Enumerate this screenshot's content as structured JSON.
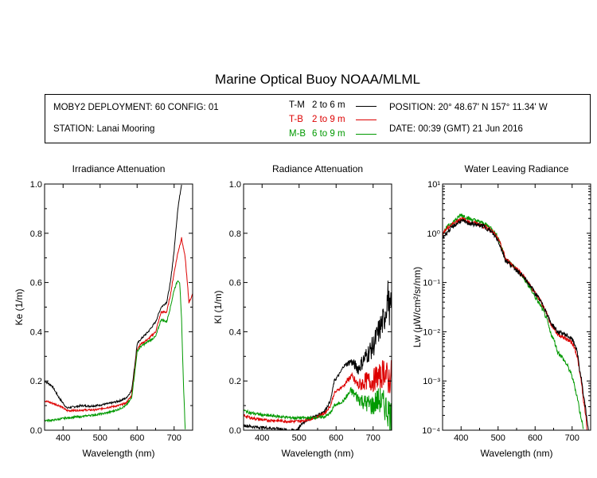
{
  "title": "Marine Optical Buoy NOAA/MLML",
  "info": {
    "deployment": "MOBY2 DEPLOYMENT: 60 CONFIG: 01",
    "station": "STATION: Lanai Mooring",
    "position": "POSITION: 20° 48.67' N   157° 11.34' W",
    "date": "DATE: 00:39 (GMT) 21 Jun 2016"
  },
  "legend": [
    {
      "code": "T-M",
      "range": "2 to 6  m",
      "color": "#000000"
    },
    {
      "code": "T-B",
      "range": "2 to 9  m",
      "color": "#dd0000"
    },
    {
      "code": "M-B",
      "range": "6 to 9  m",
      "color": "#009900"
    }
  ],
  "colors": {
    "tm": "#000000",
    "tb": "#dd0000",
    "mb": "#009900"
  },
  "chart_data": [
    {
      "type": "line",
      "title": "Irradiance Attenuation",
      "xlabel": "Wavelength (nm)",
      "ylabel": "Ke  (1/m)",
      "xlim": [
        350,
        750
      ],
      "ylim": [
        0,
        1.0
      ],
      "xticks": [
        400,
        500,
        600,
        700
      ],
      "yticks": [
        0.0,
        0.2,
        0.4,
        0.6,
        0.8,
        1.0
      ],
      "ytick_labels": [
        "0.0",
        "0.2",
        "0.4",
        "0.6",
        "0.8",
        "1.0"
      ],
      "noise": 0.004,
      "series": [
        {
          "key": "tm",
          "x": [
            350,
            370,
            390,
            410,
            430,
            450,
            470,
            490,
            510,
            530,
            550,
            570,
            585,
            595,
            600,
            610,
            630,
            650,
            665,
            680,
            690,
            700,
            710,
            720
          ],
          "y": [
            0.2,
            0.18,
            0.13,
            0.09,
            0.095,
            0.1,
            0.098,
            0.1,
            0.105,
            0.11,
            0.118,
            0.13,
            0.16,
            0.28,
            0.35,
            0.37,
            0.4,
            0.44,
            0.5,
            0.52,
            0.6,
            0.73,
            0.9,
            1.0
          ]
        },
        {
          "key": "tb",
          "x": [
            350,
            370,
            390,
            410,
            430,
            450,
            470,
            490,
            510,
            530,
            550,
            570,
            585,
            595,
            600,
            610,
            630,
            650,
            665,
            680,
            690,
            700,
            710,
            720,
            730,
            740,
            750
          ],
          "y": [
            0.12,
            0.11,
            0.1,
            0.08,
            0.08,
            0.082,
            0.082,
            0.083,
            0.09,
            0.095,
            0.1,
            0.11,
            0.14,
            0.26,
            0.33,
            0.35,
            0.37,
            0.4,
            0.48,
            0.48,
            0.55,
            0.64,
            0.72,
            0.78,
            0.7,
            0.52,
            0.55
          ]
        },
        {
          "key": "mb",
          "x": [
            350,
            370,
            390,
            410,
            430,
            450,
            470,
            490,
            510,
            530,
            550,
            570,
            585,
            595,
            600,
            610,
            630,
            650,
            665,
            680,
            690,
            700,
            710,
            715,
            720,
            725,
            730
          ],
          "y": [
            0.04,
            0.04,
            0.045,
            0.05,
            0.053,
            0.055,
            0.06,
            0.063,
            0.068,
            0.075,
            0.085,
            0.1,
            0.13,
            0.25,
            0.32,
            0.34,
            0.36,
            0.38,
            0.45,
            0.44,
            0.5,
            0.57,
            0.61,
            0.6,
            0.45,
            0.2,
            0.0
          ]
        }
      ]
    },
    {
      "type": "line",
      "title": "Radiance Attenuation",
      "xlabel": "Wavelength (nm)",
      "ylabel": "Kl  (1/m)",
      "xlim": [
        350,
        750
      ],
      "ylim": [
        0,
        1.0
      ],
      "xticks": [
        400,
        500,
        600,
        700
      ],
      "yticks": [
        0.0,
        0.2,
        0.4,
        0.6,
        0.8,
        1.0
      ],
      "ytick_labels": [
        "0.0",
        "0.2",
        "0.4",
        "0.6",
        "0.8",
        "1.0"
      ],
      "noise": 0.006,
      "series": [
        {
          "key": "tm",
          "x": [
            350,
            370,
            390,
            410,
            430,
            450,
            470,
            490,
            500,
            510,
            530,
            550,
            570,
            585,
            595,
            610,
            620,
            640,
            660,
            680,
            700,
            710,
            720,
            730,
            740,
            745,
            750
          ],
          "y": [
            0.02,
            0.015,
            0.012,
            0.01,
            0.008,
            0.005,
            0.0,
            0.0,
            0.01,
            0.03,
            0.05,
            0.06,
            0.08,
            0.12,
            0.2,
            0.23,
            0.26,
            0.28,
            0.25,
            0.3,
            0.34,
            0.38,
            0.42,
            0.45,
            0.55,
            0.48,
            0.5
          ]
        },
        {
          "key": "tb",
          "x": [
            350,
            370,
            390,
            410,
            430,
            450,
            470,
            490,
            510,
            530,
            550,
            570,
            585,
            595,
            610,
            620,
            640,
            660,
            680,
            700,
            710,
            720,
            730,
            740,
            750
          ],
          "y": [
            0.06,
            0.05,
            0.045,
            0.04,
            0.04,
            0.038,
            0.036,
            0.036,
            0.038,
            0.045,
            0.055,
            0.07,
            0.1,
            0.15,
            0.17,
            0.18,
            0.22,
            0.18,
            0.2,
            0.2,
            0.22,
            0.21,
            0.25,
            0.2,
            0.22
          ]
        },
        {
          "key": "mb",
          "x": [
            350,
            370,
            390,
            410,
            430,
            450,
            470,
            490,
            510,
            530,
            550,
            570,
            585,
            595,
            610,
            620,
            640,
            660,
            680,
            700,
            710,
            720,
            730,
            740,
            750
          ],
          "y": [
            0.08,
            0.07,
            0.065,
            0.06,
            0.058,
            0.055,
            0.052,
            0.05,
            0.05,
            0.05,
            0.052,
            0.055,
            0.07,
            0.1,
            0.11,
            0.12,
            0.16,
            0.13,
            0.11,
            0.1,
            0.12,
            0.12,
            0.1,
            0.08,
            0.05
          ]
        }
      ]
    },
    {
      "type": "line",
      "title": "Water Leaving Radiance",
      "xlabel": "Wavelength (nm)",
      "ylabel": "Lw  (μW/cm²/sr/nm)",
      "xlim": [
        350,
        750
      ],
      "ylim": [
        0.0001,
        10
      ],
      "yscale": "log",
      "xticks": [
        400,
        500,
        600,
        700
      ],
      "yticks": [
        0.0001,
        0.001,
        0.01,
        0.1,
        1,
        10
      ],
      "ytick_labels": [
        "10⁻⁴",
        "10⁻³",
        "10⁻²",
        "10⁻¹",
        "10⁰",
        "10¹"
      ],
      "noise": 0.05,
      "series": [
        {
          "key": "mb",
          "x": [
            350,
            370,
            390,
            400,
            420,
            440,
            460,
            480,
            500,
            510,
            520,
            540,
            560,
            580,
            600,
            620,
            640,
            660,
            680,
            700,
            710,
            720,
            730
          ],
          "y": [
            1.0,
            1.5,
            2.0,
            2.4,
            2.0,
            1.8,
            1.6,
            1.3,
            0.8,
            0.5,
            0.3,
            0.22,
            0.15,
            0.09,
            0.05,
            0.028,
            0.01,
            0.004,
            0.0025,
            0.0012,
            0.0006,
            0.00025,
            0.0001
          ]
        },
        {
          "key": "tb",
          "x": [
            350,
            370,
            390,
            400,
            420,
            440,
            460,
            480,
            500,
            510,
            520,
            540,
            560,
            580,
            600,
            620,
            640,
            660,
            680,
            700,
            710,
            720,
            730,
            740
          ],
          "y": [
            1.0,
            1.4,
            1.8,
            2.0,
            1.7,
            1.6,
            1.4,
            1.2,
            0.75,
            0.5,
            0.3,
            0.22,
            0.16,
            0.1,
            0.06,
            0.035,
            0.015,
            0.009,
            0.0075,
            0.006,
            0.004,
            0.0015,
            0.0004,
            0.0001
          ]
        },
        {
          "key": "tm",
          "x": [
            350,
            370,
            390,
            400,
            420,
            440,
            460,
            480,
            500,
            510,
            520,
            540,
            560,
            580,
            600,
            620,
            640,
            660,
            680,
            700,
            710,
            720,
            730,
            740,
            745
          ],
          "y": [
            0.8,
            1.2,
            1.6,
            1.8,
            1.6,
            1.5,
            1.4,
            1.1,
            0.7,
            0.45,
            0.28,
            0.21,
            0.15,
            0.1,
            0.06,
            0.035,
            0.016,
            0.01,
            0.009,
            0.007,
            0.005,
            0.0017,
            0.0005,
            0.00015,
            0.0001
          ]
        }
      ]
    }
  ]
}
